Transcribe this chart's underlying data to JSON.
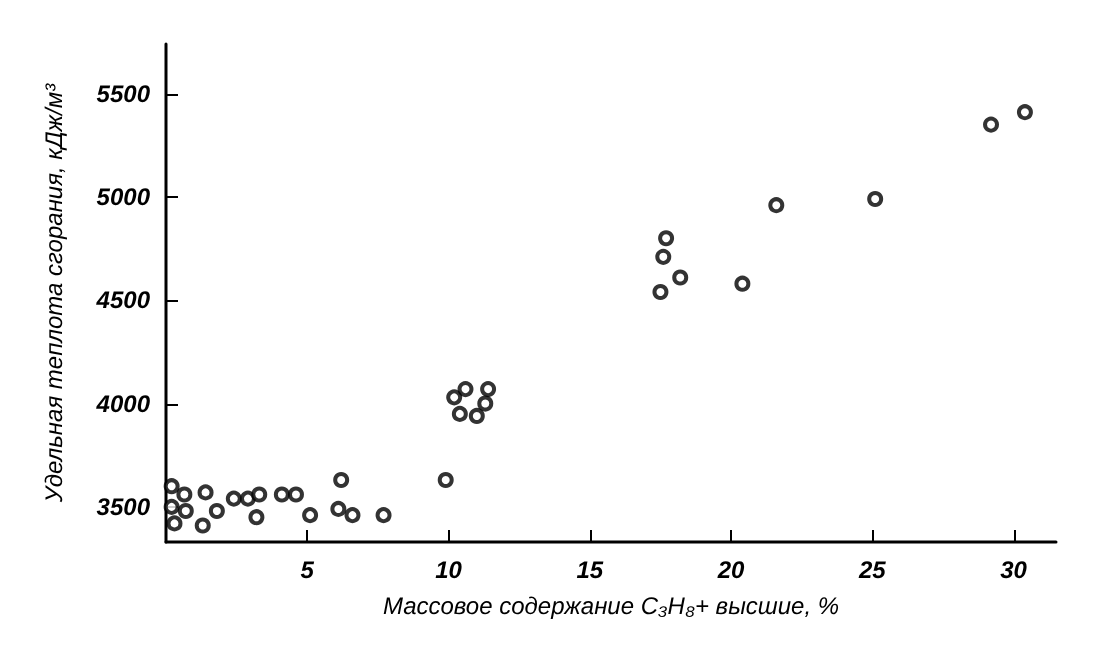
{
  "chart_data": {
    "type": "scatter",
    "xlabel": "Массовое содержание C₃H₈+ высшие, %",
    "ylabel": "Удельная теплота сгорания, кДж/м³",
    "x": [
      0.2,
      0.65,
      0.2,
      0.7,
      0.3,
      1.4,
      1.3,
      1.8,
      2.4,
      2.9,
      3.3,
      3.2,
      4.1,
      4.6,
      5.1,
      6.2,
      6.1,
      6.6,
      7.7,
      9.9,
      10.2,
      10.6,
      10.4,
      11.0,
      11.4,
      11.3,
      17.5,
      17.6,
      17.7,
      18.2,
      20.4,
      21.6,
      25.1,
      29.2,
      30.4
    ],
    "series": [
      {
        "color": "#000000",
        "values": [
          3600,
          3560,
          3500,
          3480,
          3420,
          3570,
          3410,
          3480,
          3540,
          3540,
          3560,
          3450,
          3560,
          3560,
          3460,
          3630,
          3490,
          3460,
          3460,
          3630,
          4030,
          4070,
          3950,
          3940,
          4070,
          4000,
          4540,
          4710,
          4800,
          4610,
          4580,
          4960,
          4990,
          5350,
          5410
        ]
      }
    ],
    "xlim": [
      0,
      31.5
    ],
    "ylim": [
      3330,
      5740
    ],
    "xticks": [
      5,
      10,
      15,
      20,
      25,
      30
    ],
    "yticks": [
      3500,
      4000,
      4500,
      5000,
      5500
    ],
    "grid": false,
    "marker": "circle"
  }
}
